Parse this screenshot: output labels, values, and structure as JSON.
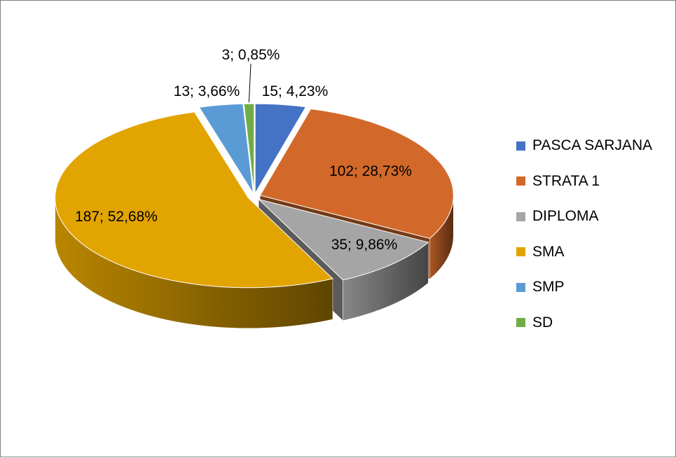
{
  "chart_data": {
    "type": "pie",
    "style": "3d-exploded",
    "title": "",
    "legend_position": "right",
    "start_angle_deg": 0,
    "direction": "clockwise",
    "slices": [
      {
        "name": "PASCA SARJANA",
        "value": 15,
        "percent": "4,23%",
        "label": "15; 4,23%",
        "color": "#4472C4"
      },
      {
        "name": "STRATA 1",
        "value": 102,
        "percent": "28,73%",
        "label": "102; 28,73%",
        "color": "#D2692A"
      },
      {
        "name": "DIPLOMA",
        "value": 35,
        "percent": "9,86%",
        "label": "35; 9,86%",
        "color": "#A5A5A5"
      },
      {
        "name": "SMA",
        "value": 187,
        "percent": "52,68%",
        "label": "187; 52,68%",
        "color": "#E2A400"
      },
      {
        "name": "SMP",
        "value": 13,
        "percent": "3,66%",
        "label": "13; 3,66%",
        "color": "#5B9BD5"
      },
      {
        "name": "SD",
        "value": 3,
        "percent": "0,85%",
        "label": "3; 0,85%",
        "color": "#70AD47"
      }
    ]
  }
}
